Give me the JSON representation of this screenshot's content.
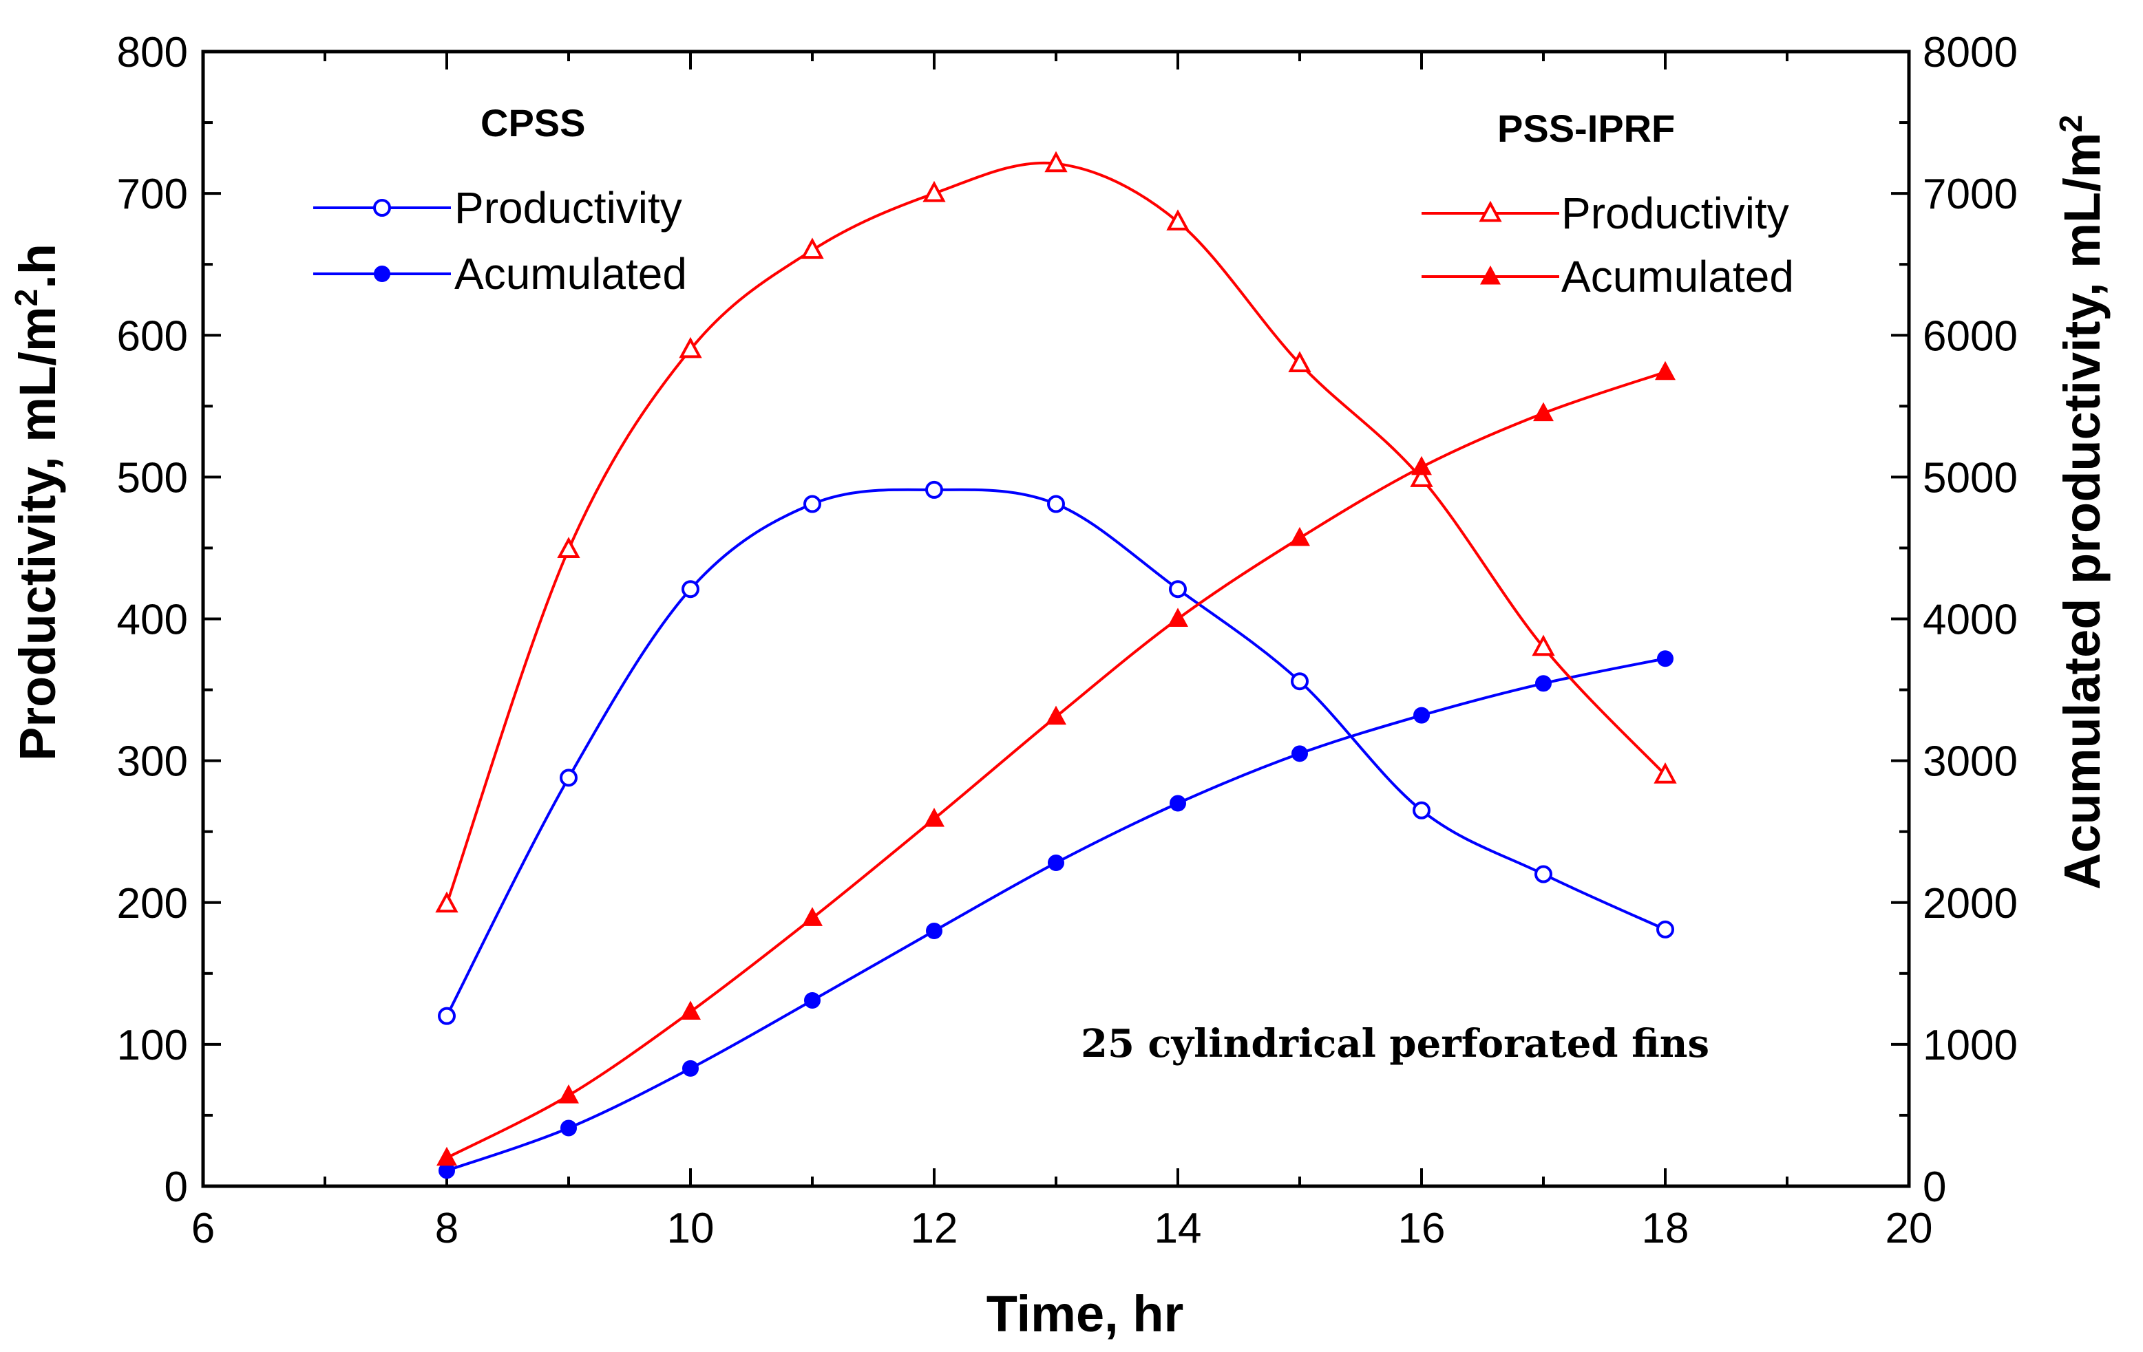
{
  "chart_data": {
    "type": "line",
    "xlabel": "Time, hr",
    "ylabel": "Productivity, mL/m².h",
    "ylabel_parts": {
      "pre": "Productivity, mL/m",
      "sup": "2",
      "post": ".h"
    },
    "y2label": "Acumulated productivity, mL/m²",
    "y2label_parts": {
      "pre": "Acumulated productivity, mL/m",
      "sup": "2",
      "post": ""
    },
    "xlim": [
      6,
      20
    ],
    "ylim": [
      0,
      800
    ],
    "y2lim": [
      0,
      8000
    ],
    "xticks": [
      "6",
      "8",
      "10",
      "12",
      "14",
      "16",
      "18",
      "20"
    ],
    "yticks": [
      "0",
      "100",
      "200",
      "300",
      "400",
      "500",
      "600",
      "700",
      "800"
    ],
    "y2ticks": [
      "0",
      "1000",
      "2000",
      "3000",
      "4000",
      "5000",
      "6000",
      "7000",
      "8000"
    ],
    "x": [
      8,
      9,
      10,
      11,
      12,
      13,
      14,
      15,
      16,
      17,
      18
    ],
    "groups": [
      {
        "title": "CPSS",
        "position": "top-left"
      },
      {
        "title": "PSS-IPRF",
        "position": "top-right"
      }
    ],
    "series": [
      {
        "name": "Productivity",
        "group": "CPSS",
        "axis": "left",
        "color": "#0000ff",
        "marker": "open-circle",
        "values": [
          120,
          288,
          421,
          481,
          491,
          481,
          421,
          356,
          265,
          220,
          181
        ]
      },
      {
        "name": "Acumulated",
        "group": "CPSS",
        "axis": "right",
        "color": "#0000ff",
        "marker": "filled-circle",
        "values": [
          110,
          410,
          830,
          1310,
          1800,
          2280,
          2700,
          3050,
          3320,
          3545,
          3720
        ]
      },
      {
        "name": "Productivity",
        "group": "PSS-IPRF",
        "axis": "left",
        "color": "#ff0000",
        "marker": "open-triangle",
        "values": [
          199,
          449,
          590,
          660,
          700,
          721,
          680,
          580,
          499,
          380,
          290
        ]
      },
      {
        "name": "Acumulated",
        "group": "PSS-IPRF",
        "axis": "right",
        "color": "#ff0000",
        "marker": "filled-triangle",
        "values": [
          200,
          640,
          1230,
          1890,
          2590,
          3310,
          4000,
          4570,
          5070,
          5450,
          5740
        ]
      }
    ],
    "annotation": "25 cylindrical perforated fins"
  }
}
